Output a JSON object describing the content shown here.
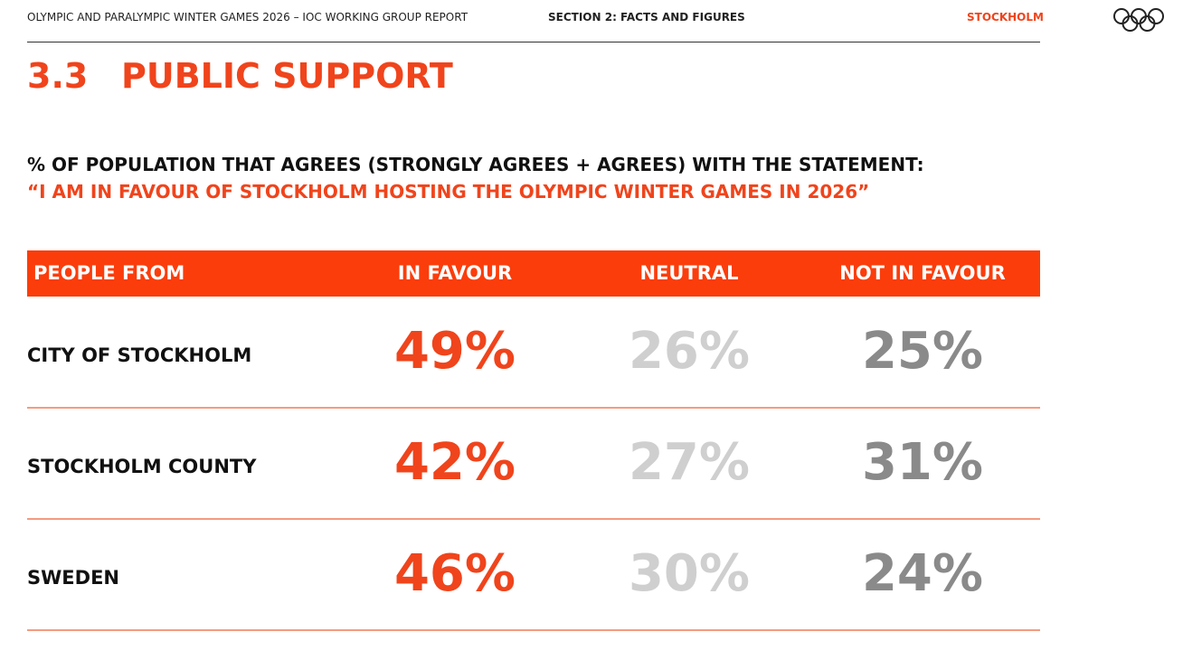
{
  "header": {
    "report": "OLYMPIC AND PARALYMPIC WINTER GAMES 2026 – IOC WORKING GROUP REPORT",
    "section": "SECTION 2: FACTS AND FIGURES",
    "city": "STOCKHOLM"
  },
  "title": {
    "number": "3.3",
    "text": "PUBLIC SUPPORT"
  },
  "statement": {
    "question": "% OF POPULATION THAT AGREES (STRONGLY AGREES + AGREES) WITH THE STATEMENT:",
    "quote": "“I AM IN FAVOUR OF STOCKHOLM HOSTING THE OLYMPIC WINTER GAMES IN 2026”"
  },
  "table": {
    "columns": [
      "PEOPLE FROM",
      "IN FAVOUR",
      "NEUTRAL",
      "NOT IN FAVOUR"
    ],
    "rows": [
      [
        "CITY OF STOCKHOLM",
        "49%",
        "26%",
        "25%"
      ],
      [
        "STOCKHOLM COUNTY",
        "42%",
        "27%",
        "31%"
      ],
      [
        "SWEDEN",
        "46%",
        "30%",
        "24%"
      ]
    ]
  }
}
